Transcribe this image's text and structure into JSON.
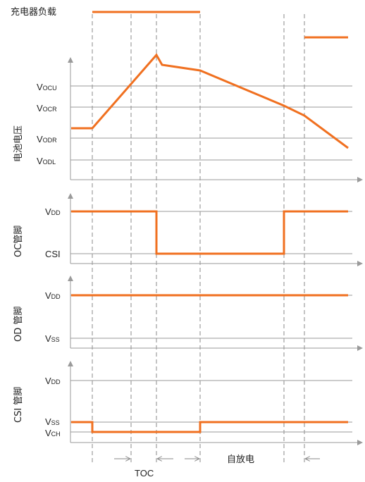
{
  "charger_load_label": "充电器负载",
  "battery_panel": {
    "ylabel": "电池电压",
    "levels": [
      {
        "main": "V",
        "sub": "OCU"
      },
      {
        "main": "V",
        "sub": "OCR"
      },
      {
        "main": "V",
        "sub": "ODR"
      },
      {
        "main": "V",
        "sub": "ODL"
      }
    ]
  },
  "oc_panel": {
    "ylabel": "OC管脚",
    "levels": [
      {
        "main": "V",
        "sub": "DD"
      },
      {
        "main": "CSI",
        "sub": ""
      }
    ]
  },
  "od_panel": {
    "ylabel": "OD 管脚",
    "levels": [
      {
        "main": "V",
        "sub": "DD"
      },
      {
        "main": "V",
        "sub": "SS"
      }
    ]
  },
  "csi_panel": {
    "ylabel": "CSI 管脚",
    "levels": [
      {
        "main": "V",
        "sub": "DD"
      },
      {
        "main": "V",
        "sub": "SS"
      },
      {
        "main": "V",
        "sub": "CH"
      }
    ]
  },
  "bottom": {
    "toc_label": "TOC",
    "self_discharge_label": "自放电"
  },
  "colors": {
    "waveform": "#f07020",
    "axis": "#9a9a9a"
  }
}
